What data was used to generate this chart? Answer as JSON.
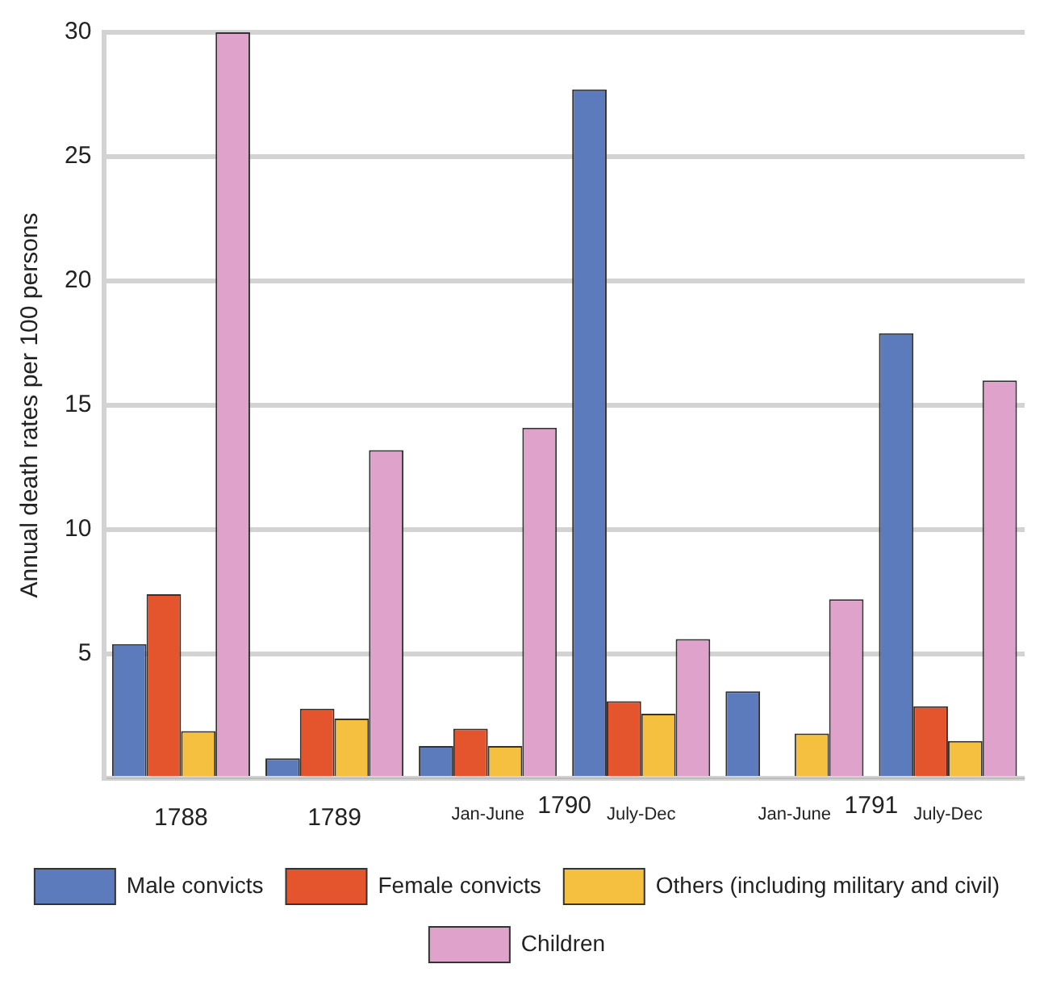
{
  "chart_data": {
    "type": "bar",
    "ylabel": "Annual death rates per 100 persons",
    "categories": [
      "1788",
      "1789",
      "Jan-June",
      "July-Dec",
      "Jan-June",
      "July-Dec"
    ],
    "series": [
      {
        "name": "Male convicts",
        "color": "#5b7bbd",
        "values": [
          5.4,
          0.8,
          1.3,
          27.7,
          3.5,
          17.9
        ]
      },
      {
        "name": "Female convicts",
        "color": "#e4552e",
        "values": [
          7.4,
          2.8,
          2.0,
          3.1,
          0,
          2.9
        ]
      },
      {
        "name": "Others (including military and civil)",
        "color": "#f5c040",
        "values": [
          1.9,
          2.4,
          1.3,
          2.6,
          1.8,
          1.5
        ]
      },
      {
        "name": "Children",
        "color": "#dea2cb",
        "values": [
          30,
          13.2,
          14.1,
          5.6,
          7.2,
          16.0
        ]
      }
    ],
    "ylim": [
      0,
      30
    ],
    "yticks": [
      {
        "value": 0,
        "label": null
      },
      5,
      10,
      15,
      20,
      25,
      30
    ],
    "grid": "y",
    "legend": "bottom",
    "annotations": [
      "1790",
      "1791"
    ]
  }
}
